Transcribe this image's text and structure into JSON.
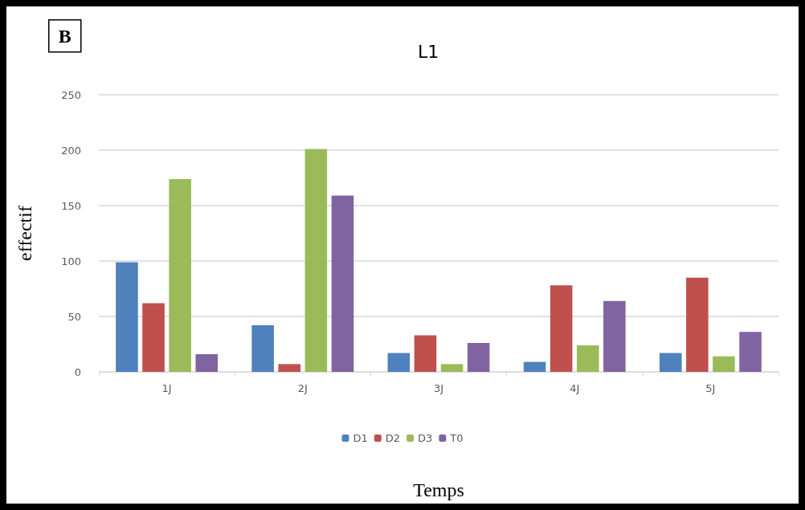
{
  "chart_data": {
    "type": "bar",
    "title": "L1",
    "xlabel": "Temps",
    "ylabel": "effectif",
    "annotations": [
      "B"
    ],
    "categories": [
      "1J",
      "2J",
      "3J",
      "4J",
      "5J"
    ],
    "series": [
      {
        "name": "D1",
        "color": "#4f81bd",
        "values": [
          99,
          42,
          17,
          9,
          17
        ]
      },
      {
        "name": "D2",
        "color": "#c0504d",
        "values": [
          62,
          7,
          33,
          78,
          85
        ]
      },
      {
        "name": "D3",
        "color": "#9bbb59",
        "values": [
          174,
          201,
          7,
          24,
          14
        ]
      },
      {
        "name": "T0",
        "color": "#8064a2",
        "values": [
          16,
          159,
          26,
          64,
          36
        ]
      }
    ],
    "ylim": [
      0,
      250
    ],
    "yticks": [
      0,
      50,
      100,
      150,
      200,
      250
    ],
    "grid": "y",
    "legend": "bottom"
  }
}
